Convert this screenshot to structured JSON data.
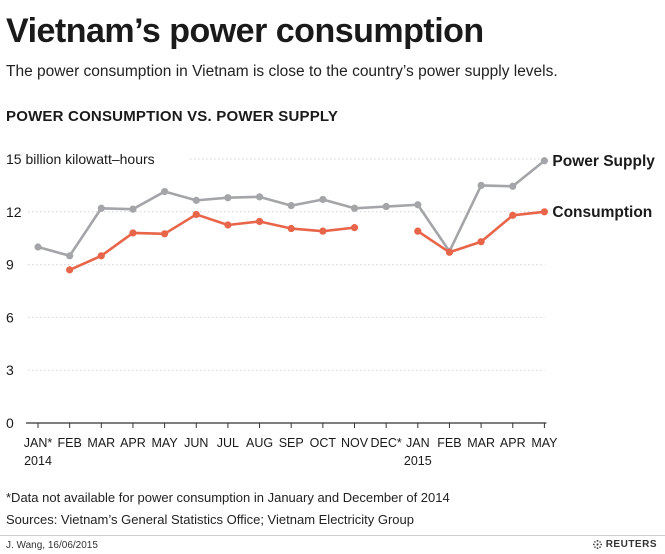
{
  "header": {
    "title": "Vietnam’s power consumption",
    "subtitle": "The power consumption in Vietnam is close to the country’s power supply levels."
  },
  "chart_data": {
    "type": "line",
    "title": "POWER CONSUMPTION VS. POWER SUPPLY",
    "ylabel": "15 billion kilowatt–hours",
    "xlabel": "",
    "ylim": [
      0,
      15
    ],
    "yticks": [
      0,
      3,
      6,
      9,
      12,
      15
    ],
    "y_tick_labels": [
      "0",
      "3",
      "6",
      "9",
      "12",
      "15"
    ],
    "grid": true,
    "categories": [
      "JAN*",
      "FEB",
      "MAR",
      "APR",
      "MAY",
      "JUN",
      "JUL",
      "AUG",
      "SEP",
      "OCT",
      "NOV",
      "DEC*",
      "JAN",
      "FEB",
      "MAR",
      "APR",
      "MAY"
    ],
    "year_labels": [
      {
        "index": 0,
        "label": "2014"
      },
      {
        "index": 12,
        "label": "2015"
      }
    ],
    "series": [
      {
        "name": "Power Supply",
        "color": "#a3a5a8",
        "values": [
          10.0,
          9.5,
          12.2,
          12.15,
          13.15,
          12.65,
          12.8,
          12.85,
          12.35,
          12.7,
          12.2,
          12.3,
          12.4,
          9.75,
          13.5,
          13.45,
          14.9
        ]
      },
      {
        "name": "Consumption",
        "color": "#e8654a",
        "values": [
          null,
          8.7,
          9.5,
          10.8,
          10.75,
          11.85,
          11.25,
          11.45,
          11.05,
          10.9,
          11.1,
          null,
          10.9,
          9.7,
          10.3,
          11.8,
          12.0
        ]
      }
    ]
  },
  "footnotes": {
    "note": "*Data not available for power consumption in January and December of 2014",
    "sources": "Sources: Vietnam’s General Statistics Office; Vietnam Electricity Group"
  },
  "credit": {
    "author": "J. Wang, 16/06/2015",
    "publisher": "REUTERS"
  },
  "colors": {
    "grid": "#d4d4d4",
    "axis": "#333333",
    "text": "#1a1a1a"
  }
}
